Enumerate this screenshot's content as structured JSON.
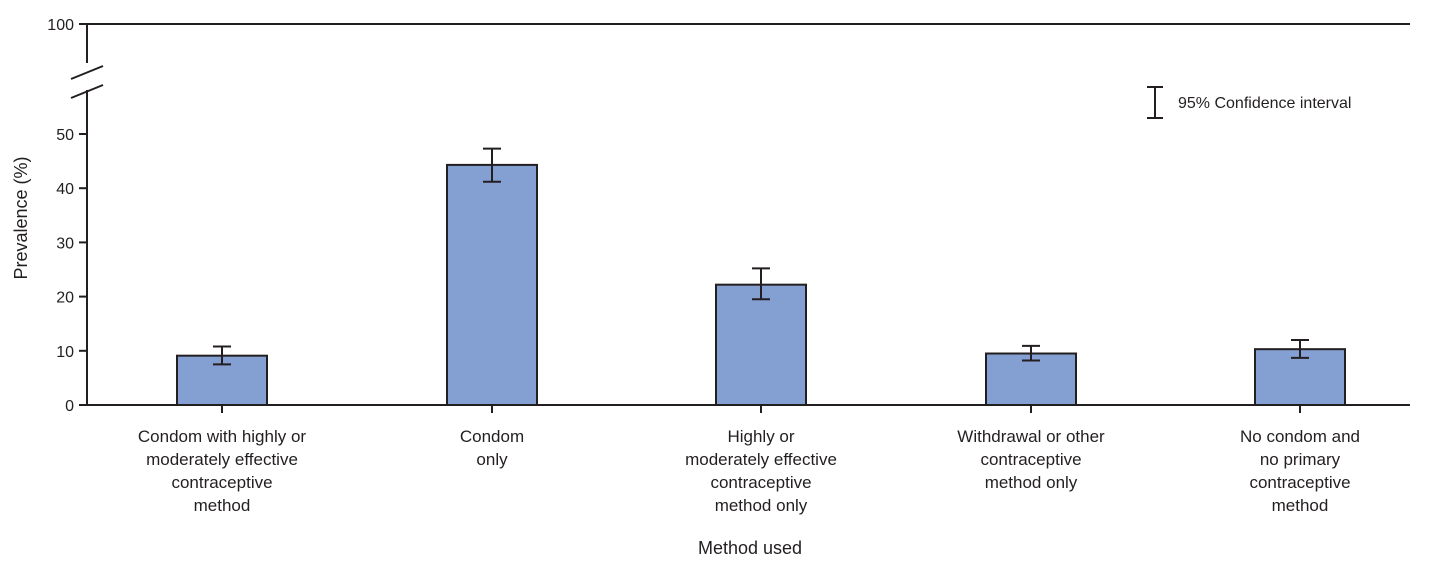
{
  "chart_data": {
    "type": "bar",
    "title": "",
    "xlabel": "Method used",
    "ylabel": "Prevalence (%)",
    "ylim": [
      0,
      50
    ],
    "axis_break": {
      "upper_label": "100"
    },
    "yticks": [
      0,
      10,
      20,
      30,
      40,
      50
    ],
    "categories": [
      [
        "Condom with highly or",
        "moderately effective",
        "contraceptive",
        "method"
      ],
      [
        "Condom",
        "only"
      ],
      [
        "Highly or",
        "moderately effective",
        "contraceptive",
        "method only"
      ],
      [
        "Withdrawal or other",
        "contraceptive",
        "method only"
      ],
      [
        "No condom and",
        "no primary",
        "contraceptive",
        "method"
      ]
    ],
    "values": [
      9.1,
      44.3,
      22.2,
      9.5,
      10.3
    ],
    "ci_low": [
      7.5,
      41.2,
      19.5,
      8.2,
      8.7
    ],
    "ci_high": [
      10.8,
      47.3,
      25.2,
      10.9,
      12.0
    ],
    "bar_color": "#849fd2",
    "legend": {
      "label": "95% Confidence interval",
      "position": "top-right"
    },
    "grid": false
  }
}
